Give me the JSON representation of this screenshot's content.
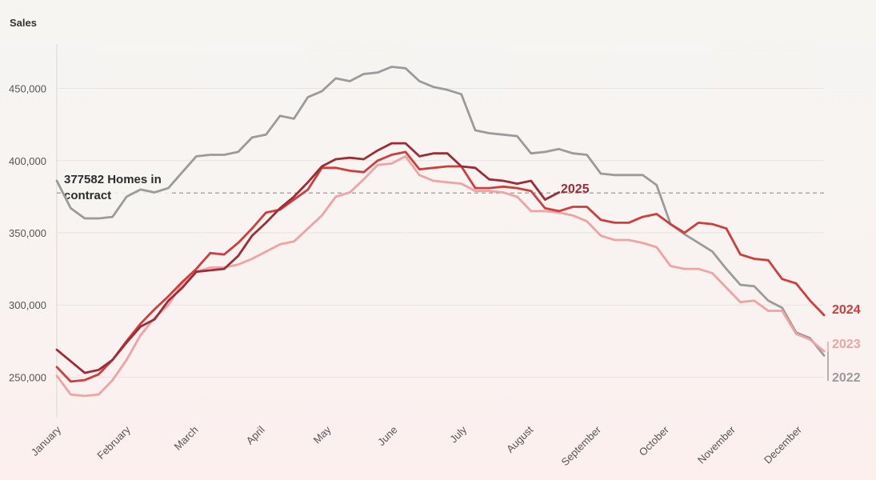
{
  "chart_data": {
    "type": "line",
    "title": "",
    "ylabel": "Sales",
    "xlabel": "",
    "ylim": [
      222000,
      478000
    ],
    "yticks": [
      250000,
      300000,
      350000,
      400000,
      450000
    ],
    "ytick_labels": [
      "250,000",
      "300,000",
      "350,000",
      "400,000",
      "450,000"
    ],
    "xlim": [
      1,
      53
    ],
    "months": [
      {
        "label": "January",
        "week": 1
      },
      {
        "label": "February",
        "week": 5.7
      },
      {
        "label": "March",
        "week": 10.3
      },
      {
        "label": "April",
        "week": 14.8
      },
      {
        "label": "May",
        "week": 19.3
      },
      {
        "label": "June",
        "week": 23.8
      },
      {
        "label": "July",
        "week": 28.5
      },
      {
        "label": "August",
        "week": 33
      },
      {
        "label": "September",
        "week": 37.6
      },
      {
        "label": "October",
        "week": 42.2
      },
      {
        "label": "November",
        "week": 46.7
      },
      {
        "label": "December",
        "week": 51.2
      }
    ],
    "reference_line": {
      "value": 377582,
      "label_line1": "377582 Homes in",
      "label_line2": "contract"
    },
    "series": [
      {
        "name": "2022",
        "color": "#9b9b9b",
        "values": [
          386000,
          367000,
          360000,
          360000,
          361000,
          375000,
          380000,
          378000,
          381000,
          392000,
          403000,
          404000,
          404000,
          406000,
          416000,
          418000,
          431000,
          429000,
          444000,
          448000,
          457000,
          455000,
          460000,
          461000,
          465000,
          464000,
          455000,
          451000,
          449000,
          446000,
          421000,
          419000,
          418000,
          417000,
          405000,
          406000,
          408000,
          405000,
          404000,
          391000,
          390000,
          390000,
          390000,
          383000,
          356000,
          349000,
          343000,
          337000,
          325000,
          314000,
          313000,
          303000,
          298000,
          281000,
          277000,
          265000
        ]
      },
      {
        "name": "2023",
        "color": "#f1a3a3",
        "values": [
          251000,
          238000,
          237000,
          238000,
          248000,
          262000,
          279000,
          291000,
          300000,
          315000,
          323000,
          326000,
          326000,
          328000,
          332000,
          337000,
          342000,
          344000,
          353000,
          362000,
          375000,
          378000,
          387000,
          397000,
          398000,
          403000,
          390000,
          386000,
          385000,
          384000,
          379000,
          379000,
          378000,
          375000,
          365000,
          365000,
          364000,
          362000,
          358000,
          348000,
          345000,
          345000,
          343000,
          340000,
          327000,
          325000,
          325000,
          322000,
          312000,
          302000,
          303000,
          296000,
          296000,
          280000,
          276000,
          268000
        ]
      },
      {
        "name": "2024",
        "color": "#d13c3c",
        "values": [
          257000,
          247000,
          248000,
          252000,
          262000,
          275000,
          287000,
          297000,
          306000,
          316000,
          325000,
          336000,
          335000,
          343000,
          353000,
          364000,
          366000,
          373000,
          380000,
          395000,
          395000,
          393000,
          392000,
          400000,
          404000,
          406000,
          394000,
          395000,
          396000,
          396000,
          381000,
          381000,
          382000,
          381000,
          379000,
          367000,
          365000,
          368000,
          368000,
          359000,
          357000,
          357000,
          361000,
          363000,
          356000,
          350000,
          357000,
          356000,
          353000,
          335000,
          332000,
          331000,
          318000,
          315000,
          303000,
          293000
        ]
      },
      {
        "name": "2025",
        "color": "#9e2b35",
        "values": [
          269000,
          261000,
          253000,
          255000,
          262000,
          274000,
          285000,
          290000,
          303000,
          312000,
          323000,
          324000,
          325000,
          334000,
          348000,
          357000,
          367000,
          375000,
          385000,
          396000,
          401000,
          402000,
          401000,
          407000,
          412000,
          412000,
          403000,
          405000,
          405000,
          396000,
          395000,
          387000,
          386000,
          384000,
          386000,
          373000,
          378000
        ]
      }
    ],
    "end_labels": [
      "2025",
      "2024",
      "2023",
      "2022"
    ]
  }
}
